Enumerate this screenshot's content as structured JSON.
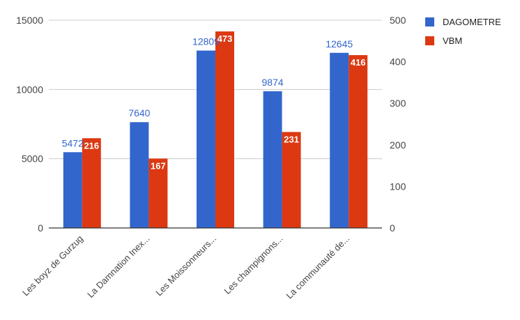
{
  "chart_data": {
    "type": "bar",
    "categories": [
      "Les boyz de Gurzug",
      "La Damnation Inex...",
      "Les Moissonneurs...",
      "Les champignons...",
      "La communauté de..."
    ],
    "series": [
      {
        "name": "DAGOMETRE",
        "axis": "left",
        "color": "#3366cc",
        "values": [
          5472,
          7640,
          12809,
          9874,
          12645
        ]
      },
      {
        "name": "VBM",
        "axis": "right",
        "color": "#dc3912",
        "values": [
          216,
          167,
          473,
          231,
          416
        ]
      }
    ],
    "left_axis": {
      "ylim": [
        0,
        15000
      ],
      "ticks": [
        "0",
        "5000",
        "10000",
        "15000"
      ]
    },
    "right_axis": {
      "ylim": [
        0,
        500
      ],
      "ticks": [
        "0",
        "100",
        "200",
        "300",
        "400",
        "500"
      ]
    },
    "grid": true,
    "legend_position": "top-right"
  }
}
